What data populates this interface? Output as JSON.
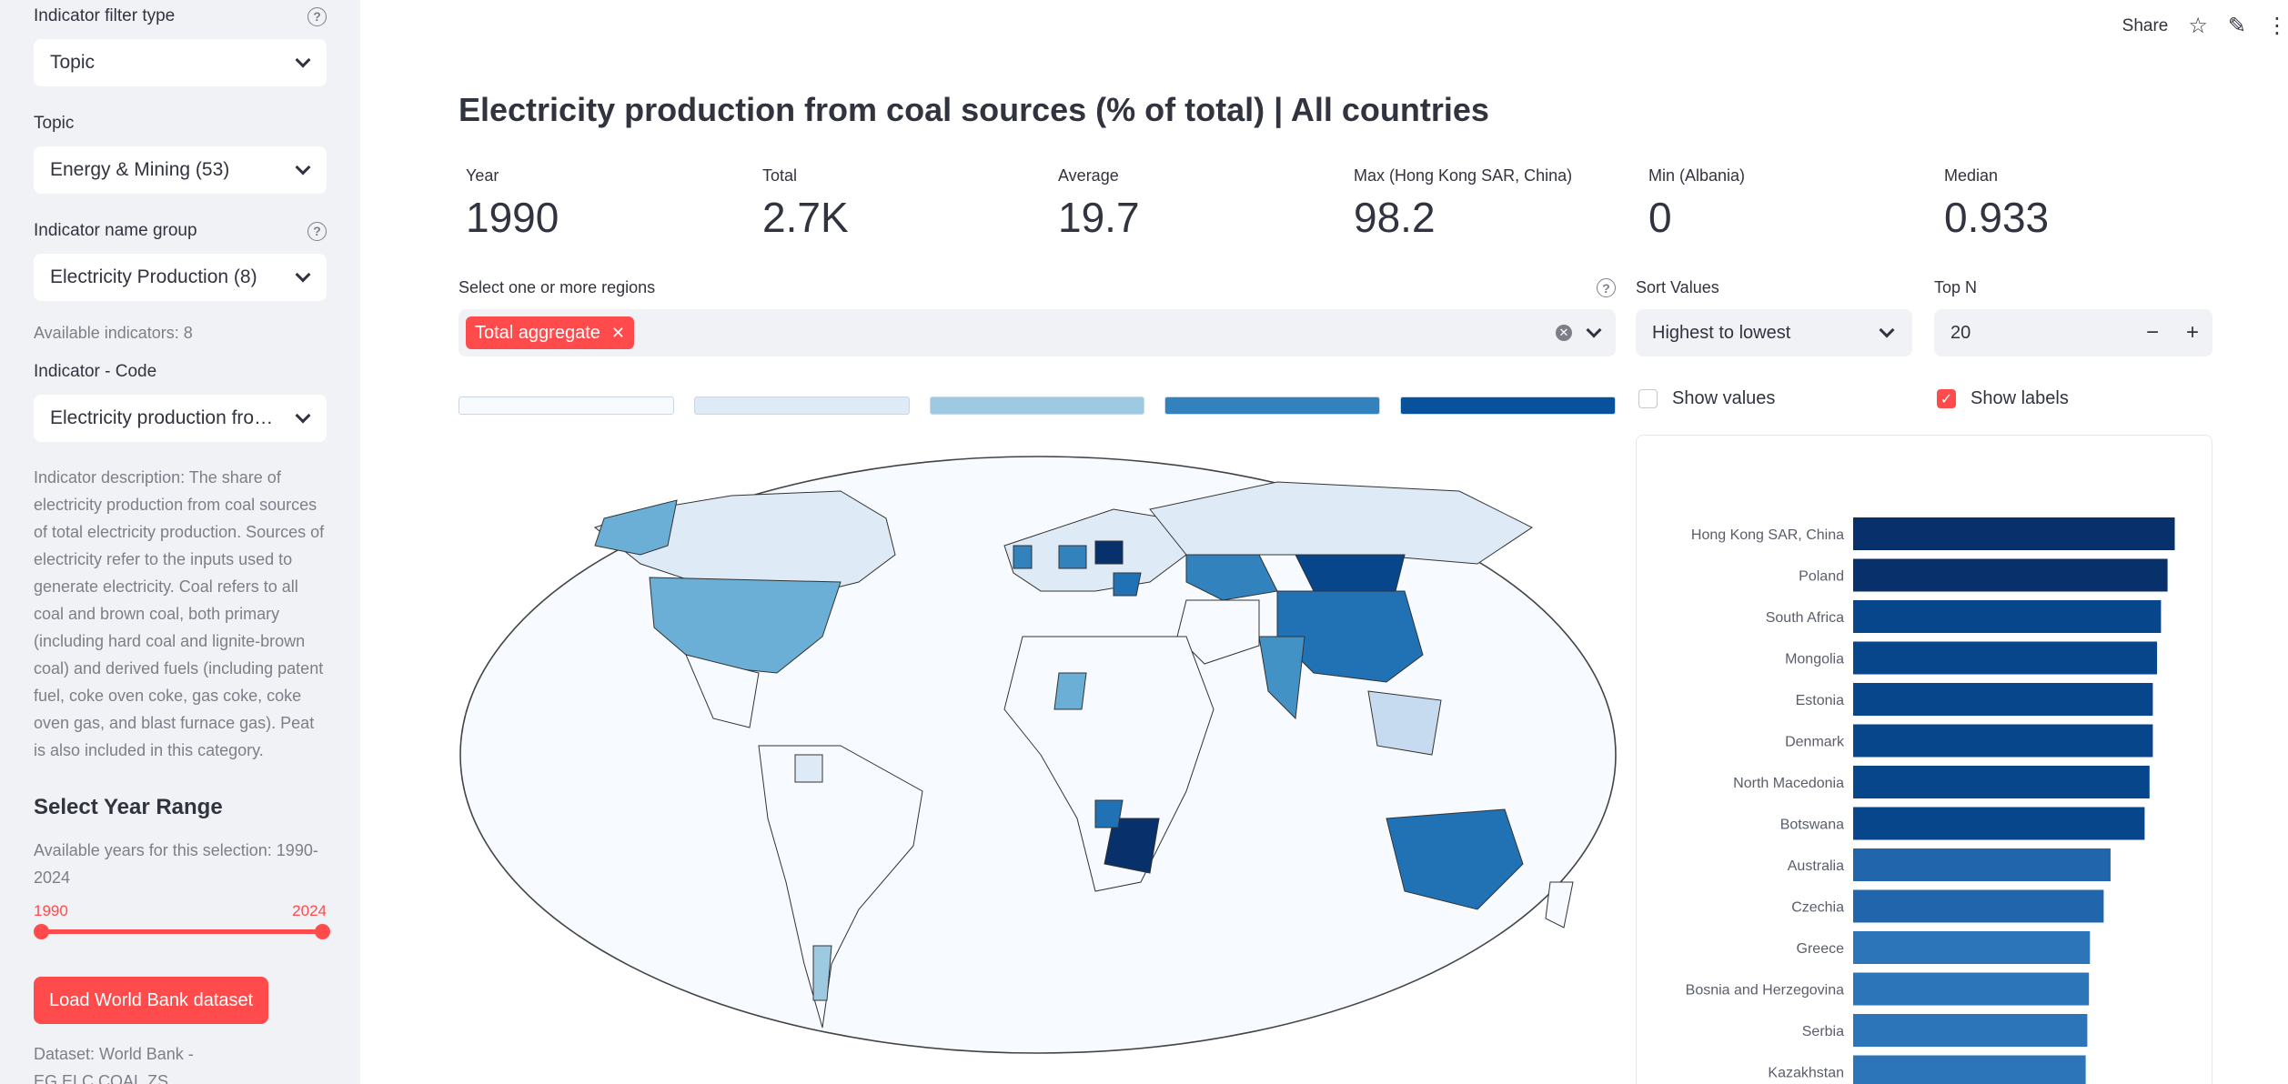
{
  "sidebar": {
    "filter_type_label": "Indicator filter type",
    "filter_type_value": "Topic",
    "topic_label": "Topic",
    "topic_value": "Energy & Mining (53)",
    "name_group_label": "Indicator name group",
    "name_group_value": "Electricity Production (8)",
    "available_indicators": "Available indicators: 8",
    "indicator_code_label": "Indicator - Code",
    "indicator_code_value": "Electricity production fro…",
    "description": "Indicator description: The share of electricity production from coal sources of total electricity production. Sources of electricity refer to the inputs used to generate electricity. Coal refers to all coal and brown coal, both primary (including hard coal and lignite-brown coal) and derived fuels (including patent fuel, coke oven coke, gas coke, coke oven gas, and blast furnace gas). Peat is also included in this category.",
    "year_range_heading": "Select Year Range",
    "available_years": "Available years for this selection: 1990-2024",
    "slider_min": "1990",
    "slider_max": "2024",
    "load_button": "Load World Bank dataset",
    "dataset_text": "Dataset: World Bank - EG.ELC.COAL.ZS"
  },
  "topbar": {
    "share": "Share"
  },
  "main": {
    "title": "Electricity production from coal sources (% of total) | All countries",
    "metrics": [
      {
        "label": "Year",
        "value": "1990"
      },
      {
        "label": "Total",
        "value": "2.7K"
      },
      {
        "label": "Average",
        "value": "19.7"
      },
      {
        "label": "Max (Hong Kong SAR, China)",
        "value": "98.2"
      },
      {
        "label": "Min (Albania)",
        "value": "0"
      },
      {
        "label": "Median",
        "value": "0.933"
      }
    ],
    "regions_label": "Select one or more regions",
    "region_chip": "Total aggregate",
    "sort_label": "Sort Values",
    "sort_value": "Highest to lowest",
    "topn_label": "Top N",
    "topn_value": "20",
    "show_values": "Show values",
    "show_labels": "Show labels",
    "legend_colors": [
      "#f7fbff",
      "#deebf7",
      "#9ecae1",
      "#3182bd",
      "#08519c"
    ]
  },
  "chart_data": {
    "type": "bar",
    "orientation": "horizontal",
    "categories": [
      "Hong Kong SAR, China",
      "Poland",
      "South Africa",
      "Mongolia",
      "Estonia",
      "Denmark",
      "North Macedonia",
      "Botswana",
      "Australia",
      "Czechia",
      "Greece",
      "Bosnia and Herzegovina",
      "Serbia",
      "Kazakhstan"
    ],
    "values": [
      98.2,
      96.0,
      94.0,
      92.8,
      91.5,
      91.5,
      90.5,
      89.0,
      78.6,
      76.5,
      72.3,
      72.0,
      71.5,
      71.0
    ],
    "colors": [
      "#08306b",
      "#08306b",
      "#08468c",
      "#08468c",
      "#08468c",
      "#08468c",
      "#08468c",
      "#08468c",
      "#2166ac",
      "#2166ac",
      "#2b75b8",
      "#2b75b8",
      "#2b75b8",
      "#2b75b8"
    ],
    "xlim": [
      0,
      100
    ]
  }
}
